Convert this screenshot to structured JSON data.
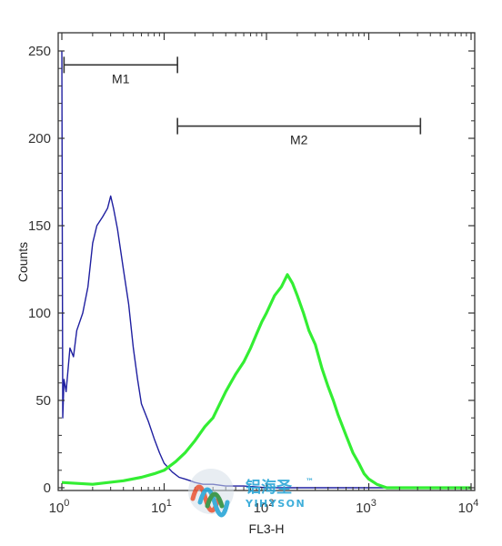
{
  "chart_data": {
    "type": "line",
    "xlabel": "FL3-H",
    "ylabel": "Counts",
    "x_scale": "log",
    "xlim": [
      1,
      10000
    ],
    "ylim": [
      0,
      260
    ],
    "x_ticks": [
      {
        "base": "10",
        "exp": "0",
        "value": 1
      },
      {
        "base": "10",
        "exp": "1",
        "value": 10
      },
      {
        "base": "10",
        "exp": "2",
        "value": 100
      },
      {
        "base": "10",
        "exp": "3",
        "value": 1000
      },
      {
        "base": "10",
        "exp": "4",
        "value": 10000
      }
    ],
    "y_ticks": [
      "0",
      "50",
      "100",
      "150",
      "200",
      "250"
    ],
    "y_tick_values": [
      0,
      50,
      100,
      150,
      200,
      250
    ],
    "markers": [
      {
        "label": "M1",
        "x_start": 1.05,
        "x_end": 13.5,
        "y": 242
      },
      {
        "label": "M2",
        "x_start": 13.5,
        "x_end": 3200,
        "y": 207
      }
    ],
    "series": [
      {
        "color": "#1f1fa0",
        "points": [
          [
            1.0,
            250
          ],
          [
            1.02,
            40
          ],
          [
            1.05,
            62
          ],
          [
            1.1,
            55
          ],
          [
            1.2,
            80
          ],
          [
            1.3,
            75
          ],
          [
            1.4,
            90
          ],
          [
            1.6,
            100
          ],
          [
            1.8,
            115
          ],
          [
            2.0,
            140
          ],
          [
            2.2,
            150
          ],
          [
            2.5,
            155
          ],
          [
            2.8,
            160
          ],
          [
            3.0,
            167
          ],
          [
            3.2,
            160
          ],
          [
            3.5,
            148
          ],
          [
            4.0,
            125
          ],
          [
            4.5,
            105
          ],
          [
            5.0,
            80
          ],
          [
            5.5,
            62
          ],
          [
            6.0,
            48
          ],
          [
            7.0,
            38
          ],
          [
            8.0,
            28
          ],
          [
            9.0,
            20
          ],
          [
            10.0,
            14
          ],
          [
            12.0,
            9
          ],
          [
            14.0,
            6
          ],
          [
            16.0,
            5
          ],
          [
            18.0,
            4
          ],
          [
            20.0,
            3
          ],
          [
            24.0,
            2
          ],
          [
            30.0,
            2
          ],
          [
            40.0,
            1
          ],
          [
            60.0,
            1
          ],
          [
            100.0,
            0
          ],
          [
            1000.0,
            0
          ],
          [
            10000.0,
            0
          ]
        ]
      },
      {
        "color": "#33ee33",
        "points": [
          [
            1.0,
            3
          ],
          [
            2.0,
            2
          ],
          [
            4.0,
            4
          ],
          [
            6.0,
            6
          ],
          [
            8.0,
            8
          ],
          [
            10.0,
            10
          ],
          [
            13.0,
            15
          ],
          [
            16.0,
            20
          ],
          [
            20.0,
            27
          ],
          [
            25.0,
            35
          ],
          [
            30.0,
            40
          ],
          [
            40.0,
            55
          ],
          [
            50.0,
            65
          ],
          [
            60.0,
            72
          ],
          [
            70.0,
            80
          ],
          [
            80.0,
            88
          ],
          [
            90.0,
            95
          ],
          [
            100.0,
            100
          ],
          [
            120.0,
            110
          ],
          [
            140.0,
            115
          ],
          [
            160.0,
            122
          ],
          [
            180.0,
            117
          ],
          [
            200.0,
            110
          ],
          [
            230.0,
            100
          ],
          [
            260.0,
            90
          ],
          [
            300.0,
            82
          ],
          [
            350.0,
            68
          ],
          [
            400.0,
            58
          ],
          [
            450.0,
            50
          ],
          [
            500.0,
            42
          ],
          [
            600.0,
            30
          ],
          [
            700.0,
            20
          ],
          [
            800.0,
            14
          ],
          [
            900.0,
            8
          ],
          [
            1000.0,
            5
          ],
          [
            1200.0,
            2
          ],
          [
            1500.0,
            0
          ],
          [
            3000.0,
            0
          ],
          [
            10000.0,
            0
          ]
        ]
      }
    ]
  },
  "watermark": {
    "chinese_text": "铝海圣",
    "latin_text": "YIHYSON",
    "trademark": "™"
  }
}
